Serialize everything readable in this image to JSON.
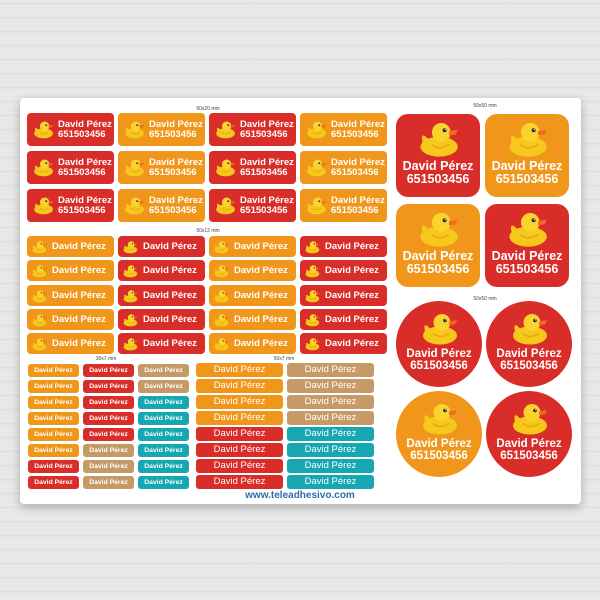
{
  "sizes": {
    "rect_large": "50x20 mm",
    "rect_medium": "50x12 mm",
    "small_left": "30x7 mm",
    "small_right": "50x7 mm",
    "square": "50x50 mm",
    "round": "50x50 mm"
  },
  "label": {
    "name": "David Pérez",
    "phone": "651503456"
  },
  "website": "www.teleadhesivo.com",
  "colors": {
    "red": "#d92d2a",
    "orange": "#f0971b",
    "tan": "#c69a66",
    "teal": "#17a7b2",
    "url": "#2d6ca8"
  },
  "icons": [
    "rubber-duck-icon"
  ]
}
